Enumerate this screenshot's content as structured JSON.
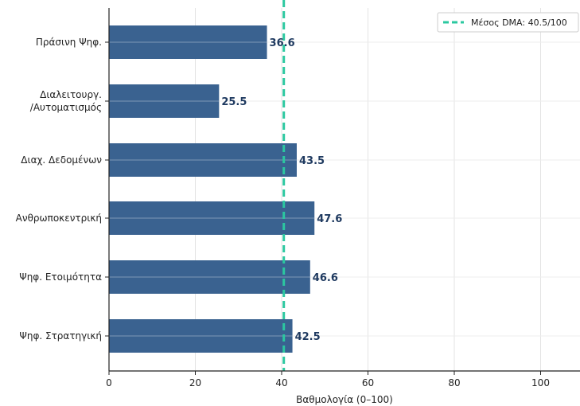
{
  "chart_data": {
    "type": "bar",
    "orientation": "horizontal",
    "categories": [
      "Πράσινη Ψηφ.",
      "Διαλειτουργ.\n/Αυτοματισμός",
      "Διαχ. Δεδομένων",
      "Ανθρωποκεντρική",
      "Ψηφ. Ετοιμότητα",
      "Ψηφ. Στρατηγική"
    ],
    "values": [
      36.6,
      25.5,
      43.5,
      47.6,
      46.6,
      42.5
    ],
    "value_labels": [
      "36.6",
      "25.5",
      "43.5",
      "47.6",
      "46.6",
      "42.5"
    ],
    "xlabel": "Βαθμολογία (0–100)",
    "ylabel": "",
    "xlim": [
      0,
      110
    ],
    "xticks": [
      0,
      20,
      40,
      60,
      80,
      100
    ],
    "xtick_labels": [
      "0",
      "20",
      "40",
      "60",
      "80",
      "100"
    ],
    "grid": true,
    "reference_line": {
      "value": 40.5,
      "label": "Μέσος DMA: 40.5/100",
      "style": "dashed"
    },
    "legend": {
      "placement": "top-right",
      "entries": [
        "Μέσος DMA: 40.5/100"
      ]
    },
    "colors": {
      "bar": "#3a6290",
      "value_label": "#1f3a60",
      "reference_line": "#2bc8a0",
      "grid": "#e3e3e3",
      "axis": "#222222"
    }
  }
}
